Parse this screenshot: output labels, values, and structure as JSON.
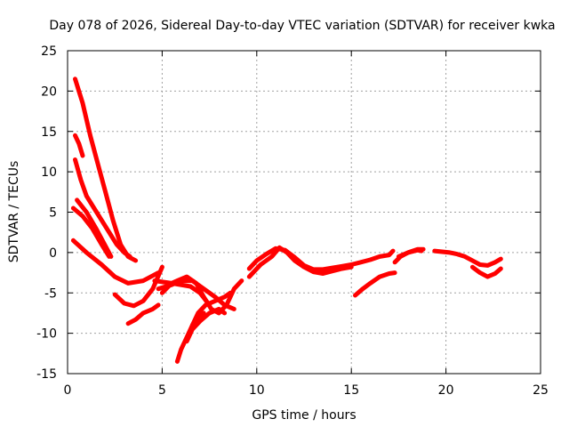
{
  "chart_data": {
    "type": "scatter",
    "title": "Day 078 of 2026, Sidereal Day-to-day VTEC variation (SDTVAR) for receiver kwka",
    "xlabel": "GPS time / hours",
    "ylabel": "SDTVAR / TECUs",
    "xlim": [
      0,
      25
    ],
    "ylim": [
      -15,
      25
    ],
    "xticks": [
      0,
      5,
      10,
      15,
      20,
      25
    ],
    "yticks": [
      -15,
      -10,
      -5,
      0,
      5,
      10,
      15,
      20,
      25
    ],
    "grid": true,
    "marker": "+",
    "color": "#ff0000",
    "series": [
      {
        "name": "track-1",
        "x": [
          0.4,
          0.8,
          1.2,
          1.6,
          2.0,
          2.4,
          2.8,
          3.2,
          3.6
        ],
        "y": [
          21.5,
          18.5,
          14.5,
          11.0,
          7.5,
          4.0,
          1.0,
          -0.5,
          -1.0
        ]
      },
      {
        "name": "track-2",
        "x": [
          0.4,
          0.6,
          0.8
        ],
        "y": [
          14.5,
          13.5,
          12.0
        ]
      },
      {
        "name": "track-3",
        "x": [
          0.4,
          0.7,
          1.0,
          1.4,
          1.8,
          2.2,
          2.6,
          3.0,
          3.3
        ],
        "y": [
          11.5,
          9.0,
          7.0,
          5.5,
          4.0,
          2.5,
          1.0,
          0.0,
          -0.5
        ]
      },
      {
        "name": "track-4",
        "x": [
          0.5,
          1.0,
          1.5,
          2.0,
          2.3
        ],
        "y": [
          6.5,
          5.0,
          3.0,
          0.8,
          -0.5
        ]
      },
      {
        "name": "track-5",
        "x": [
          0.3,
          0.8,
          1.3,
          1.8,
          2.2
        ],
        "y": [
          5.5,
          4.5,
          3.0,
          1.0,
          -0.5
        ]
      },
      {
        "name": "track-6",
        "x": [
          0.3,
          1.0,
          1.8,
          2.5,
          3.2,
          4.0,
          4.8
        ],
        "y": [
          1.5,
          0.0,
          -1.5,
          -3.0,
          -3.8,
          -3.5,
          -2.5
        ]
      },
      {
        "name": "track-7",
        "x": [
          2.5,
          3.0,
          3.5,
          4.0,
          4.5,
          5.0
        ],
        "y": [
          -5.2,
          -6.3,
          -6.6,
          -6.0,
          -4.5,
          -1.8
        ]
      },
      {
        "name": "track-8",
        "x": [
          3.2,
          3.6,
          4.0,
          4.5,
          4.8
        ],
        "y": [
          -8.8,
          -8.3,
          -7.5,
          -7.0,
          -6.5
        ]
      },
      {
        "name": "track-9",
        "x": [
          4.6,
          5.5,
          6.5,
          7.0,
          7.5
        ],
        "y": [
          -3.5,
          -3.8,
          -4.2,
          -5.0,
          -6.5
        ]
      },
      {
        "name": "track-10",
        "x": [
          4.8,
          5.5,
          6.0,
          6.6,
          7.2,
          7.8,
          8.3,
          8.8
        ],
        "y": [
          -4.5,
          -4.0,
          -3.5,
          -3.5,
          -4.5,
          -5.5,
          -6.5,
          -7.0
        ]
      },
      {
        "name": "track-11",
        "x": [
          5.0,
          5.5,
          5.8,
          6.3,
          6.8,
          7.2,
          7.6,
          8.0,
          8.4,
          8.8,
          9.2
        ],
        "y": [
          -5.0,
          -3.8,
          -3.5,
          -3.0,
          -3.8,
          -5.5,
          -7.0,
          -7.5,
          -6.5,
          -4.5,
          -3.5
        ]
      },
      {
        "name": "track-12",
        "x": [
          5.8,
          6.0,
          6.3,
          6.6,
          6.9,
          7.2
        ],
        "y": [
          -13.5,
          -12.0,
          -10.5,
          -9.0,
          -8.0,
          -7.5
        ]
      },
      {
        "name": "track-13",
        "x": [
          6.3,
          6.6,
          7.0,
          7.5,
          8.0,
          8.3
        ],
        "y": [
          -11.0,
          -9.5,
          -8.5,
          -7.5,
          -7.0,
          -7.5
        ]
      },
      {
        "name": "track-14",
        "x": [
          6.6,
          6.9,
          7.3,
          7.8,
          8.3,
          8.6
        ],
        "y": [
          -9.0,
          -7.5,
          -6.5,
          -6.0,
          -5.5,
          -5.0
        ]
      },
      {
        "name": "track-15",
        "x": [
          9.6,
          10.0,
          10.5,
          11.0,
          11.5,
          12.0,
          12.5,
          13.0,
          13.5,
          14.0,
          14.5,
          15.0,
          15.5,
          16.0,
          16.5,
          17.0,
          17.2
        ],
        "y": [
          -2.0,
          -1.0,
          -0.2,
          0.5,
          0.3,
          -0.6,
          -1.6,
          -2.1,
          -2.1,
          -1.9,
          -1.7,
          -1.5,
          -1.2,
          -0.9,
          -0.5,
          -0.3,
          0.2
        ]
      },
      {
        "name": "track-16",
        "x": [
          9.6,
          10.2,
          10.8,
          11.2,
          11.6,
          12.0,
          12.5,
          13.0,
          13.5,
          14.0,
          14.5,
          15.0
        ],
        "y": [
          -3.0,
          -1.5,
          -0.5,
          0.6,
          0.0,
          -1.0,
          -1.8,
          -2.4,
          -2.6,
          -2.3,
          -2.0,
          -1.8
        ]
      },
      {
        "name": "track-17",
        "x": [
          15.2,
          15.6,
          16.0,
          16.5,
          17.0,
          17.3
        ],
        "y": [
          -5.3,
          -4.5,
          -3.8,
          -3.0,
          -2.6,
          -2.5
        ]
      },
      {
        "name": "track-18",
        "x": [
          17.3,
          17.6,
          18.0,
          18.5,
          18.8
        ],
        "y": [
          -1.2,
          -0.5,
          0.0,
          0.4,
          0.4
        ]
      },
      {
        "name": "track-19",
        "x": [
          17.5,
          18.0,
          18.5,
          18.7
        ],
        "y": [
          -0.5,
          0.0,
          0.3,
          0.2
        ]
      },
      {
        "name": "track-20",
        "x": [
          19.4,
          19.8,
          20.2,
          20.6,
          21.0,
          21.4,
          21.8,
          22.2,
          22.6,
          22.9
        ],
        "y": [
          0.2,
          0.1,
          0.0,
          -0.2,
          -0.5,
          -1.0,
          -1.5,
          -1.6,
          -1.2,
          -0.8
        ]
      },
      {
        "name": "track-21",
        "x": [
          21.4,
          21.8,
          22.2,
          22.6,
          22.9
        ],
        "y": [
          -1.8,
          -2.5,
          -3.0,
          -2.6,
          -2.0
        ]
      }
    ]
  }
}
